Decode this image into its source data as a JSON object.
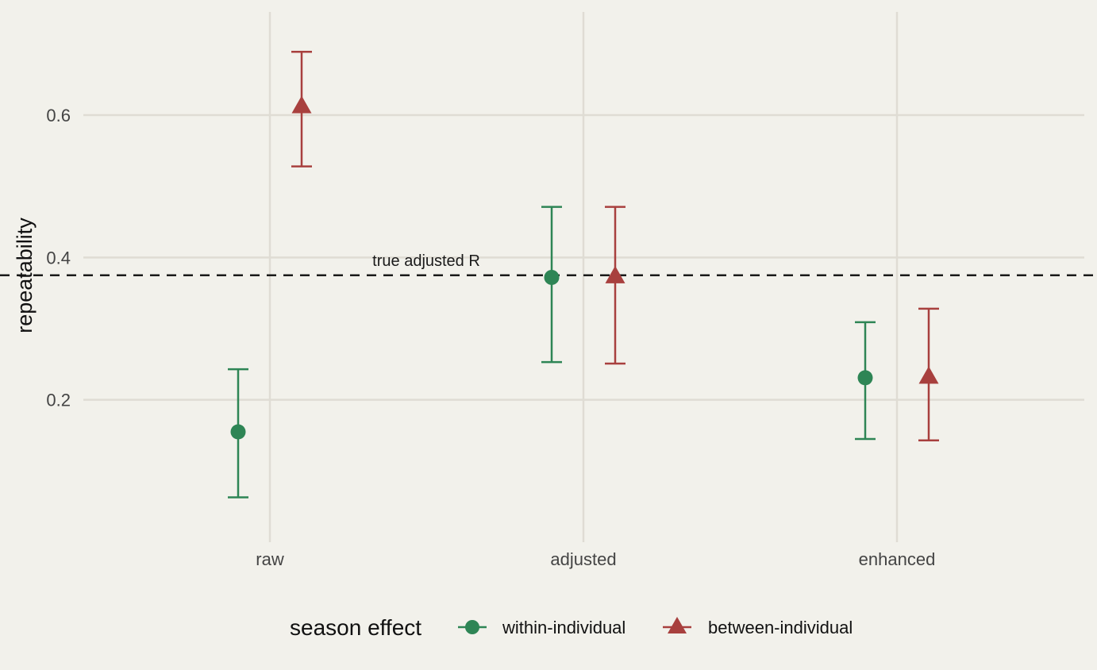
{
  "chart_data": {
    "type": "scatter",
    "title": "",
    "xlabel": "",
    "ylabel": "repeatability",
    "categories": [
      "raw",
      "adjusted",
      "enhanced"
    ],
    "ylim": [
      0.0,
      0.745
    ],
    "yticks": [
      0.2,
      0.4,
      0.6
    ],
    "ytick_labels": [
      "0.2",
      "0.4",
      "0.6"
    ],
    "grid": true,
    "legend_position": "bottom",
    "legend_title": "season effect",
    "reference_line": {
      "y": 0.375,
      "label": "true adjusted R",
      "style": "dashed"
    },
    "series": [
      {
        "name": "within-individual",
        "color": "#2e8555",
        "marker": "circle",
        "values": [
          0.155,
          0.372,
          0.231
        ],
        "lower": [
          0.063,
          0.253,
          0.145
        ],
        "upper": [
          0.243,
          0.471,
          0.309
        ]
      },
      {
        "name": "between-individual",
        "color": "#a8403e",
        "marker": "triangle",
        "values": [
          0.612,
          0.373,
          0.232
        ],
        "lower": [
          0.528,
          0.251,
          0.143
        ],
        "upper": [
          0.689,
          0.471,
          0.328
        ]
      }
    ]
  }
}
